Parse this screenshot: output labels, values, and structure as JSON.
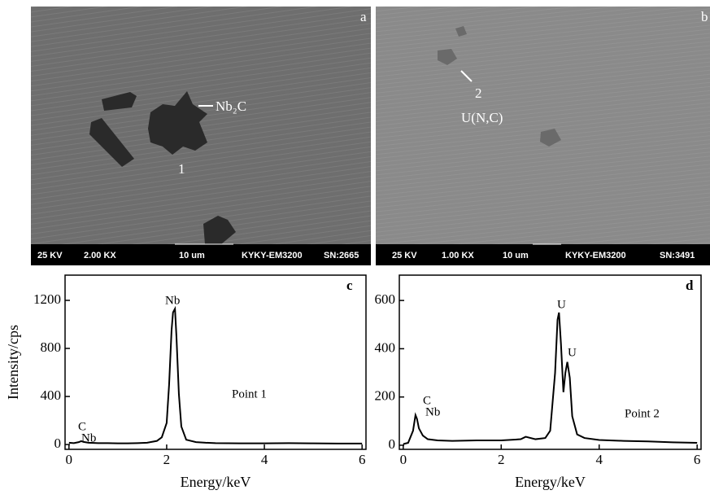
{
  "panels": [
    {
      "letter": "a",
      "labels": [
        "Nb₂C",
        "1"
      ],
      "info": [
        "25 KV",
        "2.00 KX",
        "10 um",
        "KYKY-EM3200",
        "SN:2665"
      ]
    },
    {
      "letter": "b",
      "labels": [
        "2",
        "U(N,C)"
      ],
      "info": [
        "25 KV",
        "1.00 KX",
        "10 um",
        "KYKY-EM3200",
        "SN:3491"
      ]
    }
  ],
  "chart_data": [
    {
      "type": "line",
      "letter": "c",
      "ylabel": "Intensity/cps",
      "xlabel": "Energy/keV",
      "annotations": [
        "Nb",
        "C",
        "Nb",
        "Point 1"
      ],
      "color": "#000000",
      "x": [
        0,
        0.1,
        0.2,
        0.25,
        0.3,
        0.4,
        0.6,
        0.8,
        1.0,
        1.2,
        1.4,
        1.6,
        1.8,
        1.9,
        2.0,
        2.05,
        2.1,
        2.13,
        2.17,
        2.2,
        2.25,
        2.3,
        2.4,
        2.6,
        2.8,
        3.0,
        3.5,
        4.0,
        4.5,
        5.0,
        5.5,
        6.0
      ],
      "values": [
        15,
        12,
        20,
        28,
        22,
        15,
        12,
        12,
        10,
        10,
        12,
        15,
        30,
        60,
        180,
        500,
        950,
        1100,
        1130,
        900,
        420,
        150,
        40,
        20,
        15,
        12,
        10,
        10,
        12,
        10,
        8,
        8
      ],
      "xlim": [
        -0.08,
        6.08
      ],
      "ylim": [
        -40,
        1410
      ],
      "xticks": [
        0,
        2,
        4,
        6
      ],
      "yticks": [
        0,
        400,
        800,
        1200
      ]
    },
    {
      "type": "line",
      "letter": "d",
      "ylabel": null,
      "xlabel": "Energy/keV",
      "annotations": [
        "U",
        "U",
        "C",
        "Nb",
        "Point 2"
      ],
      "color": "#000000",
      "x": [
        0,
        0.1,
        0.2,
        0.25,
        0.28,
        0.32,
        0.4,
        0.5,
        0.7,
        1.0,
        1.5,
        2.0,
        2.4,
        2.5,
        2.7,
        2.9,
        3.0,
        3.1,
        3.15,
        3.18,
        3.22,
        3.27,
        3.31,
        3.35,
        3.4,
        3.45,
        3.55,
        3.7,
        4.0,
        4.5,
        5.0,
        5.5,
        6.0
      ],
      "values": [
        5,
        10,
        60,
        125,
        110,
        70,
        40,
        25,
        20,
        18,
        20,
        20,
        25,
        35,
        25,
        30,
        60,
        300,
        520,
        550,
        420,
        220,
        300,
        345,
        280,
        120,
        45,
        30,
        22,
        18,
        16,
        12,
        10
      ],
      "xlim": [
        -0.08,
        6.08
      ],
      "ylim": [
        -17,
        705
      ],
      "xticks": [
        0,
        2,
        4,
        6
      ],
      "yticks": [
        0,
        200,
        400,
        600
      ]
    }
  ]
}
